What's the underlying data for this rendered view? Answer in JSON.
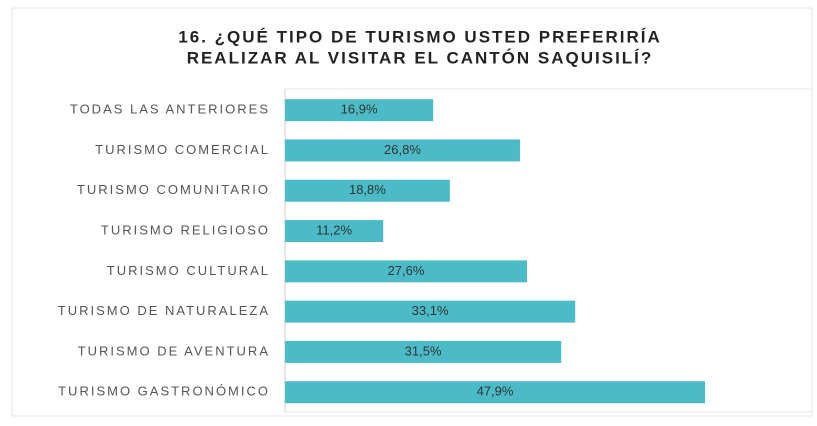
{
  "chart_data": {
    "type": "bar",
    "orientation": "horizontal",
    "title": [
      "16. ¿QUÉ TIPO DE TURISMO USTED PREFERIRÍA",
      "REALIZAR AL VISITAR EL CANTÓN SAQUISILÍ?"
    ],
    "categories": [
      "TODAS LAS ANTERIORES",
      "TURISMO COMERCIAL",
      "TURISMO COMUNITARIO",
      "TURISMO RELIGIOSO",
      "TURISMO CULTURAL",
      "TURISMO DE NATURALEZA",
      "TURISMO DE AVENTURA",
      "TURISMO GASTRONÓMICO"
    ],
    "values": [
      16.9,
      26.8,
      18.8,
      11.2,
      27.6,
      33.1,
      31.5,
      47.9
    ],
    "value_labels": [
      "16,9%",
      "26,8%",
      "18,8%",
      "11,2%",
      "27,6%",
      "33,1%",
      "31,5%",
      "47,9%"
    ],
    "color": "#4bbcc7"
  }
}
